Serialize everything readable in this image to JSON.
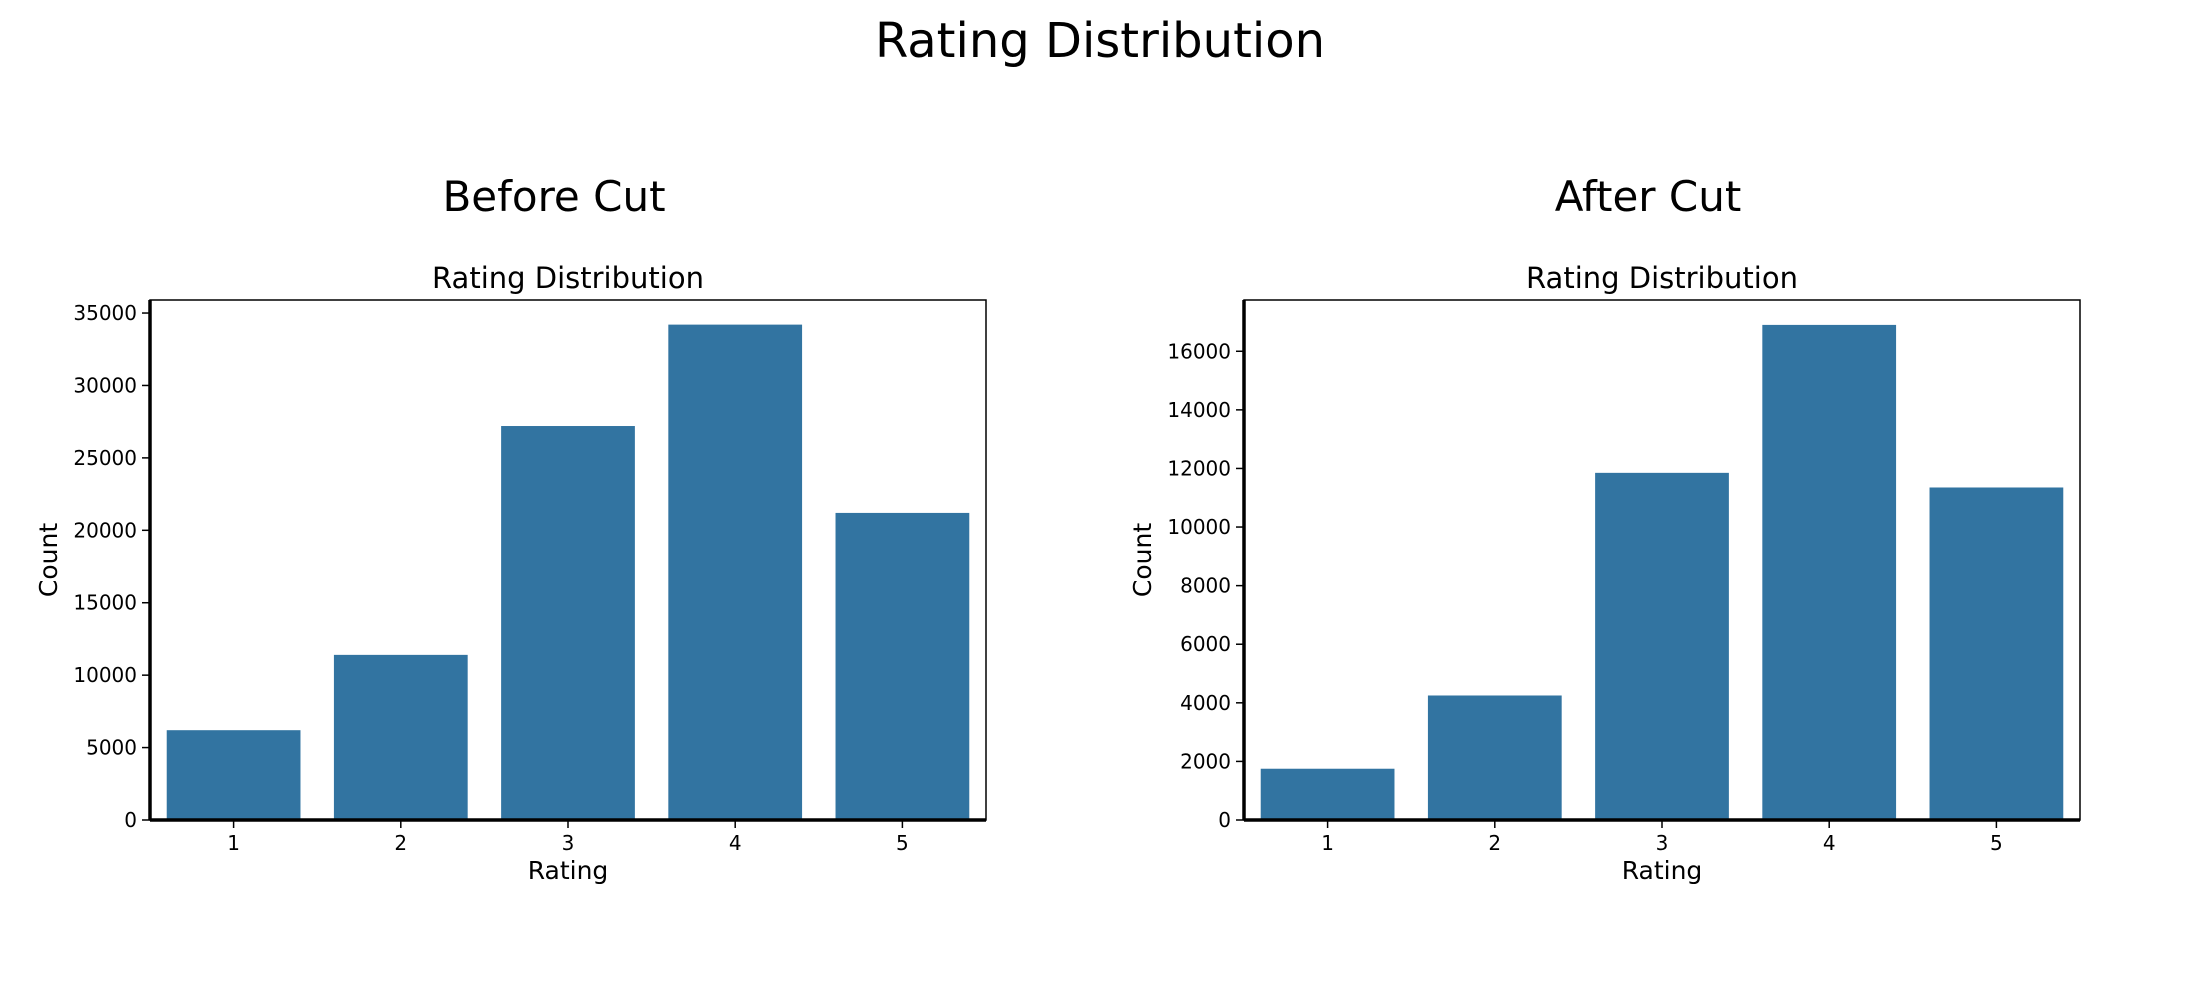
{
  "figure": {
    "title": "Rating Distribution"
  },
  "chart_data": [
    {
      "type": "bar",
      "panel_title": "Before Cut",
      "title": "Rating Distribution",
      "xlabel": "Rating",
      "ylabel": "Count",
      "categories": [
        "1",
        "2",
        "3",
        "4",
        "5"
      ],
      "values": [
        6200,
        11400,
        27200,
        34200,
        21200
      ],
      "ylim": [
        0,
        35900
      ],
      "yticks": [
        0,
        5000,
        10000,
        15000,
        20000,
        25000,
        30000,
        35000
      ],
      "bar_color": "#3274a1",
      "grid": false,
      "legend": "none"
    },
    {
      "type": "bar",
      "panel_title": "After Cut",
      "title": "Rating Distribution",
      "xlabel": "Rating",
      "ylabel": "Count",
      "categories": [
        "1",
        "2",
        "3",
        "4",
        "5"
      ],
      "values": [
        1750,
        4250,
        11850,
        16900,
        11350
      ],
      "ylim": [
        0,
        17750
      ],
      "yticks": [
        0,
        2000,
        4000,
        6000,
        8000,
        10000,
        12000,
        14000,
        16000
      ],
      "bar_color": "#3274a1",
      "grid": false,
      "legend": "none"
    }
  ]
}
